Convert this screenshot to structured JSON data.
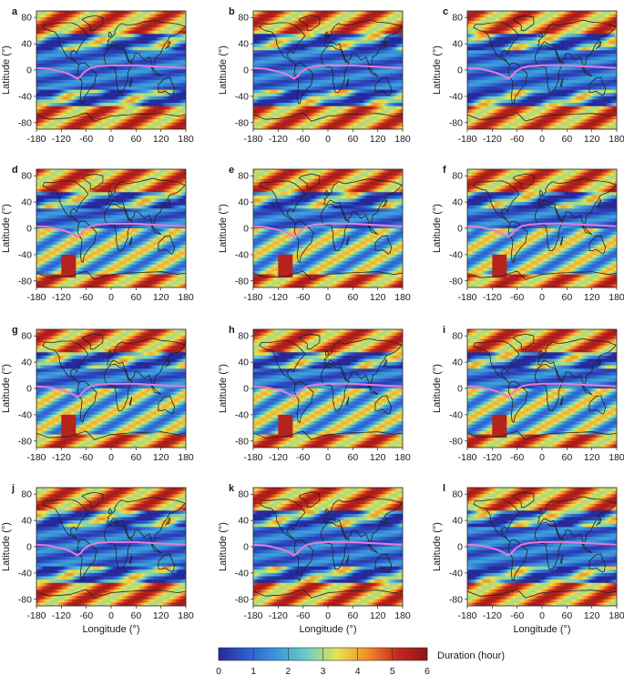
{
  "figure": {
    "colorbar": {
      "label": "Duration (hour)",
      "ticks": [
        "0",
        "1",
        "2",
        "3",
        "4",
        "5",
        "6"
      ],
      "range": [
        0,
        6
      ],
      "colors": [
        "#26299a",
        "#2f5fd0",
        "#3a9ad9",
        "#6ed0c0",
        "#e8e24c",
        "#f08c2a",
        "#c8281e",
        "#8e1416"
      ]
    },
    "equator_line_color": "#e87ad8",
    "axis_tick_color": "#1a1a1a"
  },
  "chart_data": [
    {
      "type": "heatmap",
      "panel": "a",
      "xlabel": "",
      "ylabel": "Latitude (°)",
      "x_ticks": [
        "-180",
        "-120",
        "-60",
        "0",
        "60",
        "120",
        "180"
      ],
      "y_ticks": [
        "80",
        "40",
        "0",
        "-40",
        "-80"
      ],
      "xlim": [
        -180,
        180
      ],
      "ylim": [
        -90,
        90
      ]
    },
    {
      "type": "heatmap",
      "panel": "b",
      "xlabel": "",
      "ylabel": "Latitude (°)",
      "x_ticks": [
        "-180",
        "-120",
        "-60",
        "0",
        "60",
        "120",
        "180"
      ],
      "y_ticks": [
        "80",
        "40",
        "0",
        "-40",
        "-80"
      ],
      "xlim": [
        -180,
        180
      ],
      "ylim": [
        -90,
        90
      ]
    },
    {
      "type": "heatmap",
      "panel": "c",
      "xlabel": "",
      "ylabel": "Latitude (°)",
      "x_ticks": [
        "-180",
        "-120",
        "-60",
        "0",
        "60",
        "120",
        "180"
      ],
      "y_ticks": [
        "80",
        "40",
        "0",
        "-40",
        "-80"
      ],
      "xlim": [
        -180,
        180
      ],
      "ylim": [
        -90,
        90
      ]
    },
    {
      "type": "heatmap",
      "panel": "d",
      "xlabel": "",
      "ylabel": "Latitude (°)",
      "x_ticks": [
        "-180",
        "-120",
        "-60",
        "0",
        "60",
        "120",
        "180"
      ],
      "y_ticks": [
        "80",
        "40",
        "0",
        "-40",
        "-80"
      ],
      "xlim": [
        -180,
        180
      ],
      "ylim": [
        -90,
        90
      ]
    },
    {
      "type": "heatmap",
      "panel": "e",
      "xlabel": "",
      "ylabel": "Latitude (°)",
      "x_ticks": [
        "-180",
        "-120",
        "-60",
        "0",
        "60",
        "120",
        "180"
      ],
      "y_ticks": [
        "80",
        "40",
        "0",
        "-40",
        "-80"
      ],
      "xlim": [
        -180,
        180
      ],
      "ylim": [
        -90,
        90
      ]
    },
    {
      "type": "heatmap",
      "panel": "f",
      "xlabel": "",
      "ylabel": "Latitude (°)",
      "x_ticks": [
        "-180",
        "-120",
        "-60",
        "0",
        "60",
        "120",
        "180"
      ],
      "y_ticks": [
        "80",
        "40",
        "0",
        "-40",
        "-80"
      ],
      "xlim": [
        -180,
        180
      ],
      "ylim": [
        -90,
        90
      ]
    },
    {
      "type": "heatmap",
      "panel": "g",
      "xlabel": "",
      "ylabel": "Latitude (°)",
      "x_ticks": [
        "-180",
        "-120",
        "-60",
        "0",
        "60",
        "120",
        "180"
      ],
      "y_ticks": [
        "80",
        "40",
        "0",
        "-40",
        "-80"
      ],
      "xlim": [
        -180,
        180
      ],
      "ylim": [
        -90,
        90
      ]
    },
    {
      "type": "heatmap",
      "panel": "h",
      "xlabel": "",
      "ylabel": "Latitude (°)",
      "x_ticks": [
        "-180",
        "-120",
        "-60",
        "0",
        "60",
        "120",
        "180"
      ],
      "y_ticks": [
        "80",
        "40",
        "0",
        "-40",
        "-80"
      ],
      "xlim": [
        -180,
        180
      ],
      "ylim": [
        -90,
        90
      ]
    },
    {
      "type": "heatmap",
      "panel": "i",
      "xlabel": "",
      "ylabel": "Latitude (°)",
      "x_ticks": [
        "-180",
        "-120",
        "-60",
        "0",
        "60",
        "120",
        "180"
      ],
      "y_ticks": [
        "80",
        "40",
        "0",
        "-40",
        "-80"
      ],
      "xlim": [
        -180,
        180
      ],
      "ylim": [
        -90,
        90
      ]
    },
    {
      "type": "heatmap",
      "panel": "j",
      "xlabel": "Longitude (°)",
      "ylabel": "Latitude (°)",
      "x_ticks": [
        "-180",
        "-120",
        "-60",
        "0",
        "60",
        "120",
        "180"
      ],
      "y_ticks": [
        "80",
        "40",
        "0",
        "-40",
        "-80"
      ],
      "xlim": [
        -180,
        180
      ],
      "ylim": [
        -90,
        90
      ]
    },
    {
      "type": "heatmap",
      "panel": "k",
      "xlabel": "Longitude (°)",
      "ylabel": "Latitude (°)",
      "x_ticks": [
        "-180",
        "-120",
        "-60",
        "0",
        "60",
        "120",
        "180"
      ],
      "y_ticks": [
        "80",
        "40",
        "0",
        "-40",
        "-80"
      ],
      "xlim": [
        -180,
        180
      ],
      "ylim": [
        -90,
        90
      ]
    },
    {
      "type": "heatmap",
      "panel": "l",
      "xlabel": "Longitude (°)",
      "ylabel": "Latitude (°)",
      "x_ticks": [
        "-180",
        "-120",
        "-60",
        "0",
        "60",
        "120",
        "180"
      ],
      "y_ticks": [
        "80",
        "40",
        "0",
        "-40",
        "-80"
      ],
      "xlim": [
        -180,
        180
      ],
      "ylim": [
        -90,
        90
      ]
    }
  ]
}
